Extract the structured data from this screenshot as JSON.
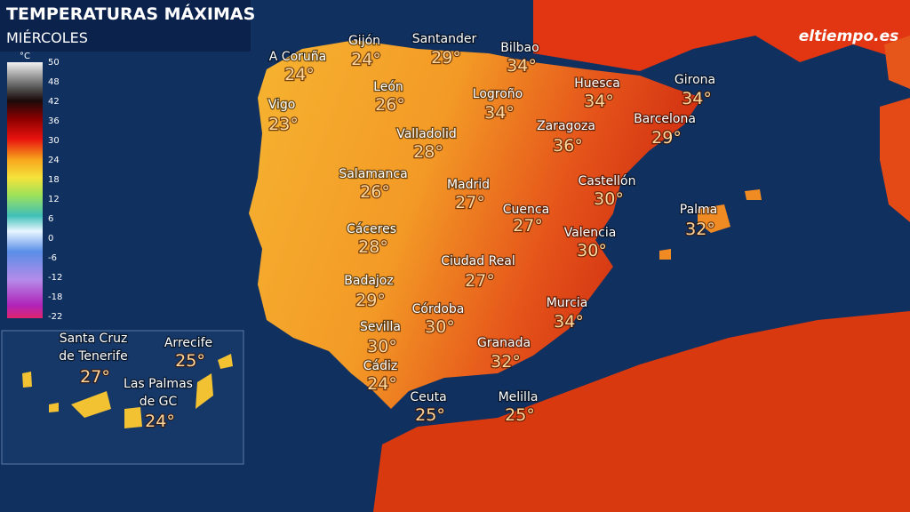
{
  "header": {
    "title": "TEMPERATURAS MÁXIMAS",
    "subtitle": "MIÉRCOLES",
    "logo": "eltiempo.es"
  },
  "legend": {
    "unit": "°C",
    "labels": [
      50,
      48,
      42,
      36,
      30,
      24,
      18,
      12,
      6,
      0,
      -6,
      -12,
      -18,
      -22
    ]
  },
  "cities": [
    {
      "label": [
        "A Coruña"
      ],
      "temp": "24°"
    },
    {
      "label": [
        "Gijón"
      ],
      "temp": "24°"
    },
    {
      "label": [
        "Santander"
      ],
      "temp": "29°"
    },
    {
      "label": [
        "Bilbao"
      ],
      "temp": "34°"
    },
    {
      "label": [
        "León"
      ],
      "temp": "26°"
    },
    {
      "label": [
        "Logroño"
      ],
      "temp": "34°"
    },
    {
      "label": [
        "Huesca"
      ],
      "temp": "34°"
    },
    {
      "label": [
        "Girona"
      ],
      "temp": "34°"
    },
    {
      "label": [
        "Vigo"
      ],
      "temp": "23°"
    },
    {
      "label": [
        "Zaragoza"
      ],
      "temp": "36°"
    },
    {
      "label": [
        "Barcelona"
      ],
      "temp": "29°"
    },
    {
      "label": [
        "Valladolid"
      ],
      "temp": "28°"
    },
    {
      "label": [
        "Salamanca"
      ],
      "temp": "26°"
    },
    {
      "label": [
        "Madrid"
      ],
      "temp": "27°"
    },
    {
      "label": [
        "Castellón"
      ],
      "temp": "30°"
    },
    {
      "label": [
        "Palma"
      ],
      "temp": "32°"
    },
    {
      "label": [
        "Cuenca"
      ],
      "temp": "27°"
    },
    {
      "label": [
        "Cáceres"
      ],
      "temp": "28°"
    },
    {
      "label": [
        "Valencia"
      ],
      "temp": "30°"
    },
    {
      "label": [
        "Ciudad Real"
      ],
      "temp": "27°"
    },
    {
      "label": [
        "Badajoz"
      ],
      "temp": "29°"
    },
    {
      "label": [
        "Murcia"
      ],
      "temp": "34°"
    },
    {
      "label": [
        "Córdoba"
      ],
      "temp": "30°"
    },
    {
      "label": [
        "Sevilla"
      ],
      "temp": "30°"
    },
    {
      "label": [
        "Granada"
      ],
      "temp": "32°"
    },
    {
      "label": [
        "Cádiz"
      ],
      "temp": "24°"
    },
    {
      "label": [
        "Ceuta"
      ],
      "temp": "25°"
    },
    {
      "label": [
        "Melilla"
      ],
      "temp": "25°"
    },
    {
      "label": [
        "Santa Cruz",
        "de Tenerife"
      ],
      "temp": "27°"
    },
    {
      "label": [
        "Arrecife"
      ],
      "temp": "25°"
    },
    {
      "label": [
        "Las Palmas",
        "de GC"
      ],
      "temp": "24°"
    }
  ]
}
